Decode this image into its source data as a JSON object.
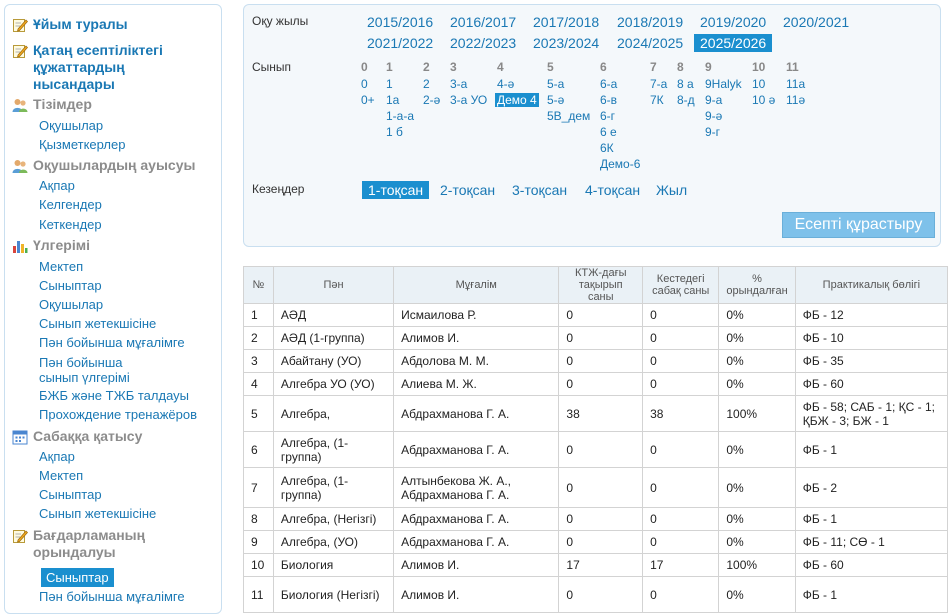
{
  "sidebar": {
    "sections": [
      {
        "title": "Ұйым туралы",
        "icon": "edit-icon",
        "style": "blue",
        "links": []
      },
      {
        "title": "Қатаң есептіліктегі құжаттардың нысандары",
        "icon": "edit-icon",
        "style": "blue",
        "links": []
      },
      {
        "title": "Тізімдер",
        "icon": "users-icon",
        "style": "grey",
        "links": [
          "Оқушылар",
          "Қызметкерлер"
        ]
      },
      {
        "title": "Оқушылардың ауысуы",
        "icon": "users-icon",
        "style": "grey",
        "links": [
          "Ақпар",
          "Келгендер",
          "Кеткендер"
        ]
      },
      {
        "title": "Үлгерімі",
        "icon": "bar-chart-icon",
        "style": "grey",
        "links": [
          "Мектеп",
          "Сыныптар",
          "Оқушылар",
          "Сынып жетекшісіне",
          "Пән бойынша мұғалімге",
          "Пән бойынша сынып үлгерімі",
          "БЖБ және ТЖБ талдауы",
          "Прохождение тренажёров"
        ]
      },
      {
        "title": "Сабаққа қатысу",
        "icon": "calendar-icon",
        "style": "grey",
        "links": [
          "Ақпар",
          "Мектеп",
          "Сыныптар",
          "Сынып жетекшісіне"
        ]
      },
      {
        "title": "Бағдарламаның орындалуы",
        "icon": "edit-icon",
        "style": "grey",
        "links": [
          "Сыныптар",
          "Пән бойынша мұғалімге"
        ],
        "active_link": "Сыныптар"
      }
    ]
  },
  "filter": {
    "year_label": "Оқу жылы",
    "years": [
      "2015/2016",
      "2016/2017",
      "2017/2018",
      "2018/2019",
      "2019/2020",
      "2020/2021",
      "2021/2022",
      "2022/2023",
      "2023/2024",
      "2024/2025",
      "2025/2026"
    ],
    "selected_year": "2025/2026",
    "class_label": "Сынып",
    "grades": [
      {
        "num": "0",
        "classes": [
          "0",
          "0+"
        ]
      },
      {
        "num": "1",
        "classes": [
          "1",
          "1а",
          "1-а-а",
          "1 б"
        ]
      },
      {
        "num": "2",
        "classes": [
          "2",
          "2-ә"
        ]
      },
      {
        "num": "3",
        "classes": [
          "3-а",
          "3-а УО"
        ]
      },
      {
        "num": "4",
        "classes": [
          "4-ә",
          "Демо 4"
        ]
      },
      {
        "num": "5",
        "classes": [
          "5-а",
          "5-ә",
          "5В_дем"
        ]
      },
      {
        "num": "6",
        "classes": [
          "6-а",
          "6-в",
          "6-г",
          "6 е",
          "6К",
          "Демо-6"
        ]
      },
      {
        "num": "7",
        "classes": [
          "7-а",
          "7К"
        ]
      },
      {
        "num": "8",
        "classes": [
          "8 а",
          "8-д"
        ]
      },
      {
        "num": "9",
        "classes": [
          "9Halyk",
          "9-а",
          "9-ә",
          "9-г"
        ]
      },
      {
        "num": "10",
        "classes": [
          "10",
          "10 ә"
        ]
      },
      {
        "num": "11",
        "classes": [
          "11а",
          "11ә"
        ]
      }
    ],
    "selected_class": "Демо 4",
    "period_label": "Кезеңдер",
    "periods": [
      "1-тоқсан",
      "2-тоқсан",
      "3-тоқсан",
      "4-тоқсан",
      "Жыл"
    ],
    "selected_period": "1-тоқсан",
    "build_button": "Есепті құрастыру"
  },
  "table": {
    "headers": [
      "№",
      "Пән",
      "Мұғалім",
      "КТЖ-дағы тақырып саны",
      "Кестедегі сабақ саны",
      "% орындалған",
      "Практикалық бөлігі"
    ],
    "rows": [
      [
        "1",
        "АӘД",
        "Исмаилова Р.",
        "0",
        "0",
        "0%",
        "ФБ - 12"
      ],
      [
        "2",
        "АӘД (1-группа)",
        "Алимов И.",
        "0",
        "0",
        "0%",
        "ФБ - 10"
      ],
      [
        "3",
        "Абайтану (УО)",
        "Абдолова М. М.",
        "0",
        "0",
        "0%",
        "ФБ - 35"
      ],
      [
        "4",
        "Алгебра УО (УО)",
        "Алиева М. Ж.",
        "0",
        "0",
        "0%",
        "ФБ - 60"
      ],
      [
        "5",
        "Алгебра,",
        "Абдрахманова Г. А.",
        "38",
        "38",
        "100%",
        "ФБ - 58; САБ - 1; ҚС - 1; ҚБЖ - 3; БЖ - 1"
      ],
      [
        "6",
        "Алгебра, (1-группа)",
        "Абдрахманова Г. А.",
        "0",
        "0",
        "0%",
        "ФБ - 1"
      ],
      [
        "7",
        "Алгебра, (1-группа)",
        "Алтынбекова Ж. А., Абдрахманова Г. А.",
        "0",
        "0",
        "0%",
        "ФБ - 2"
      ],
      [
        "8",
        "Алгебра, (Негізгі)",
        "Абдрахманова Г. А.",
        "0",
        "0",
        "0%",
        "ФБ - 1"
      ],
      [
        "9",
        "Алгебра, (УО)",
        "Абдрахманова Г. А.",
        "0",
        "0",
        "0%",
        "ФБ - 11; СӨ - 1"
      ],
      [
        "10",
        "Биология",
        "Алимов И.",
        "17",
        "17",
        "100%",
        "ФБ - 60"
      ],
      [
        "11",
        "Биология (Негізгі)",
        "Алимов И.",
        "0",
        "0",
        "0%",
        "ФБ - 1"
      ]
    ]
  }
}
